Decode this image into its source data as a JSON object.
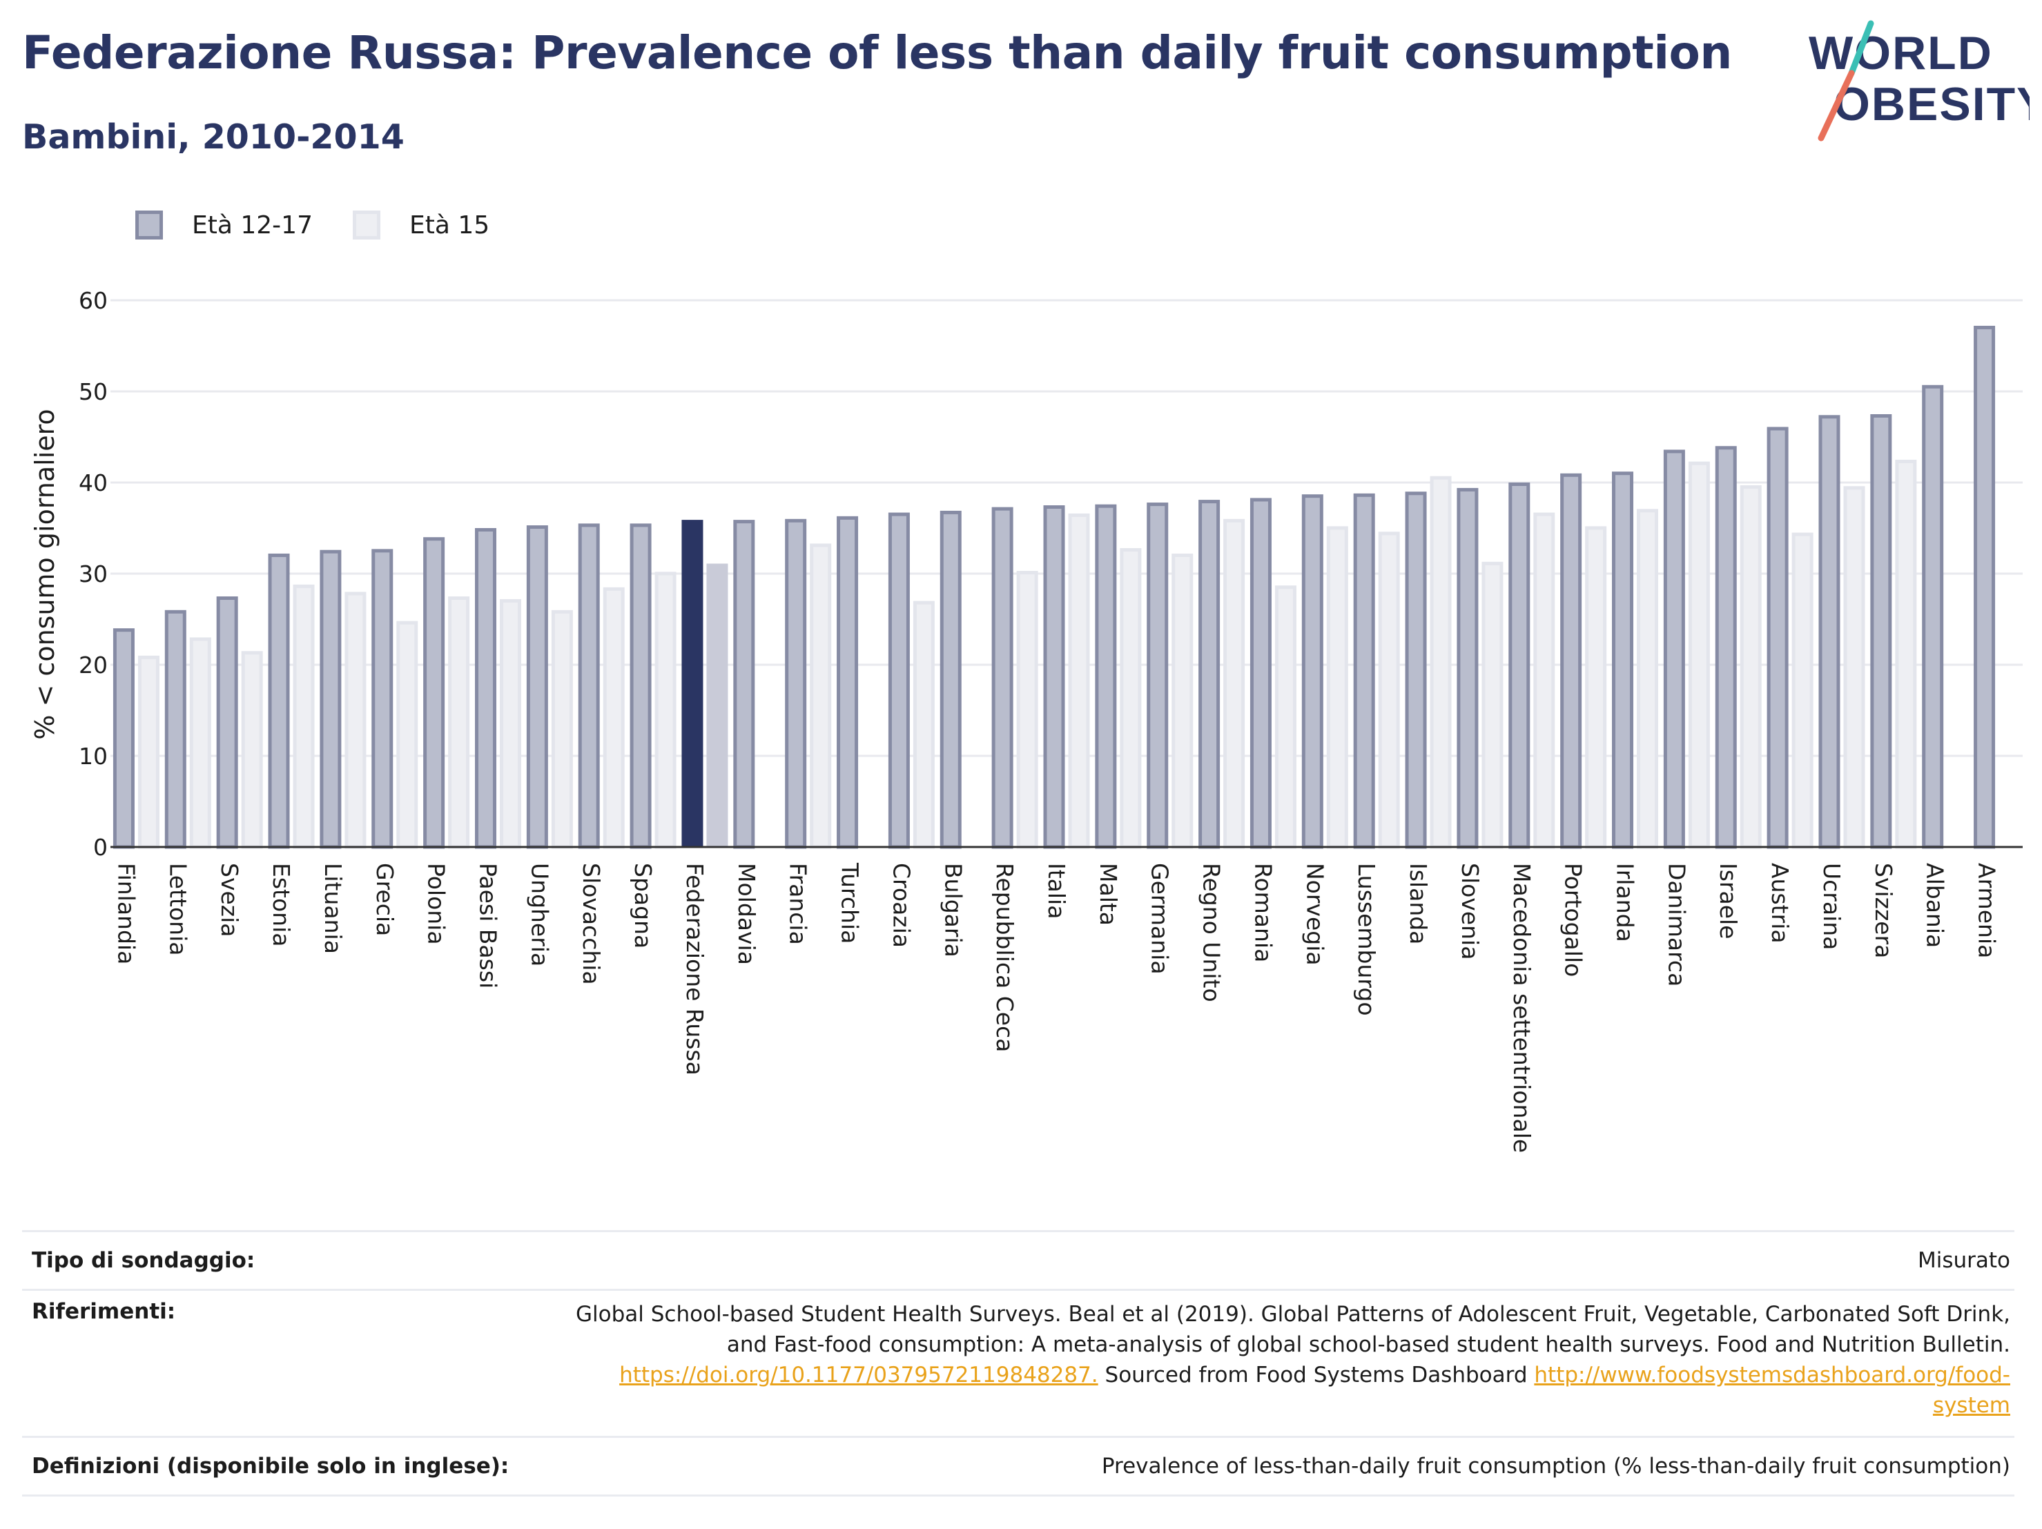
{
  "title": "Federazione Russa: Prevalence of less than daily fruit consumption",
  "subtitle": "Bambini, 2010-2014",
  "logo": {
    "line1": "WORLD",
    "line2": "OBESITY"
  },
  "legend": [
    {
      "label": "Età 12-17",
      "color": "#b9bdcd"
    },
    {
      "label": "Età 15",
      "color": "#eeeff3"
    }
  ],
  "chart_data": {
    "type": "bar",
    "ylabel": "% < consumo giornaliero",
    "ylim": [
      0,
      60
    ],
    "yticks": [
      0,
      10,
      20,
      30,
      40,
      50,
      60
    ],
    "grid": true,
    "highlight": "Federazione Russa",
    "highlight_color": "#2a3563",
    "categories": [
      "Finlandia",
      "Lettonia",
      "Svezia",
      "Estonia",
      "Lituania",
      "Grecia",
      "Polonia",
      "Paesi Bassi",
      "Ungheria",
      "Slovacchia",
      "Spagna",
      "Federazione Russa",
      "Moldavia",
      "Francia",
      "Turchia",
      "Croazia",
      "Bulgaria",
      "Repubblica Ceca",
      "Italia",
      "Malta",
      "Germania",
      "Regno Unito",
      "Romania",
      "Norvegia",
      "Lussemburgo",
      "Islanda",
      "Slovenia",
      "Macedonia settentrionale",
      "Portogallo",
      "Irlanda",
      "Danimarca",
      "Israele",
      "Austria",
      "Ucraina",
      "Svizzera",
      "Albania",
      "Armenia"
    ],
    "series": [
      {
        "name": "Età 12-17",
        "values": [
          24.0,
          26.0,
          27.5,
          32.2,
          32.6,
          32.7,
          34.0,
          35.0,
          35.3,
          35.5,
          35.5,
          35.9,
          35.9,
          36.0,
          36.3,
          36.7,
          36.9,
          37.3,
          37.5,
          37.6,
          37.8,
          38.1,
          38.3,
          38.7,
          38.8,
          39.0,
          39.4,
          40.0,
          41.0,
          41.2,
          43.6,
          44.0,
          46.1,
          47.4,
          47.5,
          50.7,
          57.2
        ]
      },
      {
        "name": "Età 15",
        "values": [
          21.0,
          23.0,
          21.5,
          28.8,
          28.0,
          24.8,
          27.5,
          27.2,
          26.0,
          28.5,
          30.2,
          31.1,
          null,
          33.3,
          null,
          27.0,
          null,
          30.3,
          36.6,
          32.8,
          32.2,
          36.0,
          28.7,
          35.2,
          34.6,
          40.7,
          31.3,
          36.7,
          35.2,
          37.1,
          42.3,
          39.7,
          34.5,
          39.6,
          42.5,
          null,
          null
        ]
      }
    ]
  },
  "info_table": {
    "survey_label": "Tipo di sondaggio:",
    "survey_value": "Misurato",
    "refs_label": "Riferimenti:",
    "refs_line1": "Global School-based Student Health Surveys. Beal et al (2019). Global Patterns of Adolescent Fruit, Vegetable, Carbonated Soft Drink,",
    "refs_line2": "and Fast-food consumption: A meta-analysis of global school-based student health surveys. Food and Nutrition Bulletin.",
    "refs_link1": "https://doi.org/10.1177/0379572119848287.",
    "refs_mid": " Sourced from Food Systems Dashboard ",
    "refs_link2a": "http://www.foodsystemsdashboard.org/food-",
    "refs_link2b": "system",
    "defs_label": "Definizioni (disponibile solo in inglese):",
    "defs_value": "Prevalence of less-than-daily fruit consumption (% less-than-daily fruit consumption)"
  }
}
